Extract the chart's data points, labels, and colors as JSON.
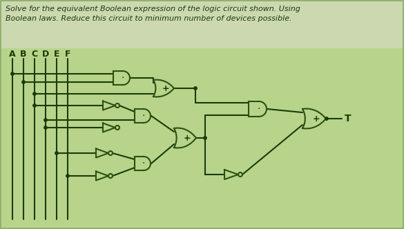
{
  "bg_top": "#ccd9b0",
  "bg_bottom": "#b8d48a",
  "gate_color": "#2a5010",
  "wire_color": "#1a3a08",
  "text_color": "#1a3a08",
  "title_line1": "Solve for the equivalent Boolean expression of the logic circuit shown. Using",
  "title_line2": "Boolean laws. Reduce this circuit to minimum number of devices possible.",
  "inputs": [
    "A",
    "B",
    "C",
    "D",
    "E",
    "F"
  ],
  "output_label": "T",
  "fig_w": 5.85,
  "fig_h": 3.32,
  "dpi": 100
}
